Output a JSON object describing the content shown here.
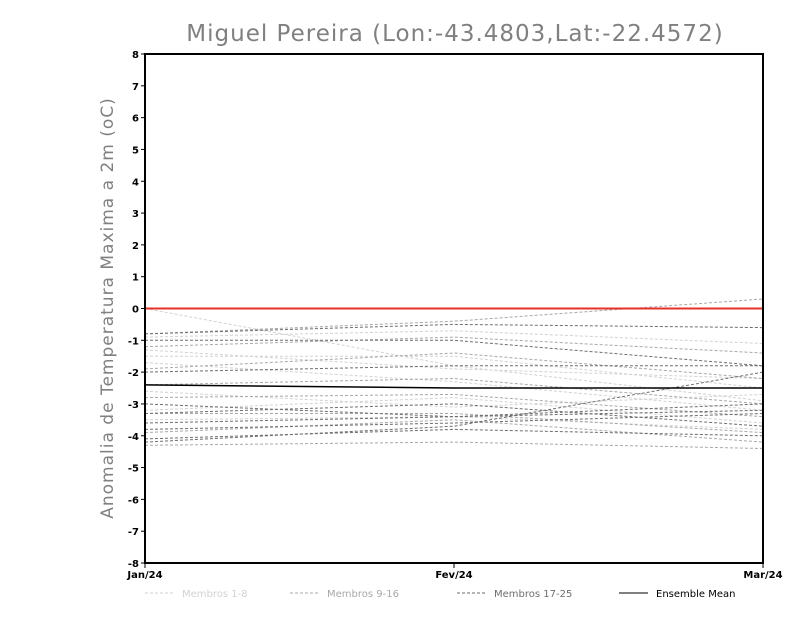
{
  "chart_data": {
    "type": "line",
    "title": "Miguel Pereira (Lon:-43.4803,Lat:-22.4572)",
    "ylabel": "Anomalia de Temperatura Maxima a 2m (oC)",
    "xlabel": "",
    "categories": [
      "Jan/24",
      "Fev/24",
      "Mar/24"
    ],
    "ylim": [
      -8,
      8
    ],
    "yticks": [
      8,
      7,
      6,
      5,
      4,
      3,
      2,
      1,
      0,
      -1,
      -2,
      -3,
      -4,
      -5,
      -6,
      -7,
      -8
    ],
    "ytick_labels": [
      "8",
      "7",
      "6",
      "5",
      "4",
      "3",
      "2",
      "1",
      "0",
      "-1",
      "-2",
      "-3",
      "-4",
      "-5",
      "-6",
      "-7",
      "-8"
    ],
    "zero_line_color": "#e8302a",
    "series_groups": [
      {
        "name": "Membros 1-8",
        "color": "#d2d2d2",
        "members": [
          [
            0.0,
            -1.8,
            -2.9
          ],
          [
            -1.3,
            -1.9,
            -2.2
          ],
          [
            -1.7,
            -2.3,
            -3.2
          ],
          [
            -2.6,
            -3.1,
            -2.7
          ],
          [
            -3.2,
            -2.8,
            -3.6
          ],
          [
            -0.9,
            -0.7,
            -1.1
          ],
          [
            -1.5,
            -1.5,
            -2.5
          ],
          [
            -3.5,
            -3.4,
            -3.8
          ]
        ]
      },
      {
        "name": "Membros 9-16",
        "color": "#a8a8a8",
        "members": [
          [
            -0.8,
            -0.4,
            0.3
          ],
          [
            -1.2,
            -0.9,
            -1.4
          ],
          [
            -2.4,
            -2.2,
            -3.0
          ],
          [
            -3.3,
            -3.3,
            -3.9
          ],
          [
            -3.9,
            -3.5,
            -4.2
          ],
          [
            -4.3,
            -4.2,
            -4.4
          ],
          [
            -2.8,
            -2.7,
            -3.4
          ],
          [
            -1.9,
            -1.4,
            -2.2
          ]
        ]
      },
      {
        "name": "Membros 17-25",
        "color": "#6e6e6e",
        "members": [
          [
            -0.8,
            -0.5,
            -0.6
          ],
          [
            -1.0,
            -1.0,
            -1.8
          ],
          [
            -2.0,
            -1.8,
            -1.8
          ],
          [
            -3.0,
            -3.4,
            -3.2
          ],
          [
            -3.6,
            -3.4,
            -3.0
          ],
          [
            -4.2,
            -3.7,
            -2.0
          ],
          [
            -3.8,
            -3.6,
            -3.3
          ],
          [
            -3.3,
            -3.0,
            -3.7
          ],
          [
            -4.1,
            -3.8,
            -4.0
          ]
        ]
      }
    ],
    "series": [
      {
        "name": "Ensemble Mean",
        "color": "#000000",
        "values": [
          -2.4,
          -2.5,
          -2.5
        ]
      }
    ],
    "legend": {
      "position": "bottom",
      "entries": [
        {
          "label": "Membros 1-8",
          "color": "#d2d2d2",
          "dashed": true
        },
        {
          "label": "Membros 9-16",
          "color": "#a8a8a8",
          "dashed": true
        },
        {
          "label": "Membros 17-25",
          "color": "#6e6e6e",
          "dashed": true
        },
        {
          "label": "Ensemble Mean",
          "color": "#000000",
          "dashed": false
        }
      ]
    }
  }
}
